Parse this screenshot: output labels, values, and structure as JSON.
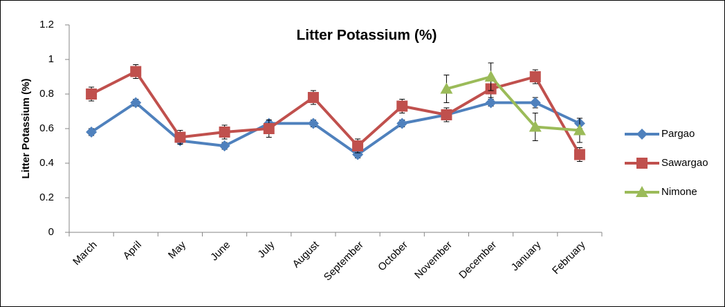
{
  "chart_data": {
    "type": "line",
    "title": "Litter Potassium (%)",
    "y_label": "Litter Potassium (%)",
    "categories": [
      "March",
      "April",
      "May",
      "June",
      "July",
      "August",
      "September",
      "October",
      "November",
      "December",
      "January",
      "February"
    ],
    "series": [
      {
        "name": "Pargao",
        "color": "#4f81bd",
        "marker": "diamond",
        "values": [
          0.58,
          0.75,
          0.53,
          0.5,
          0.63,
          0.63,
          0.45,
          0.63,
          0.68,
          0.75,
          0.75,
          0.63
        ],
        "errors": [
          0.02,
          0.02,
          0.02,
          0.02,
          0.02,
          0.02,
          0.02,
          0.02,
          0.02,
          0.02,
          0.03,
          0.03
        ]
      },
      {
        "name": "Sawargao",
        "color": "#c0504d",
        "marker": "square",
        "values": [
          0.8,
          0.93,
          0.55,
          0.58,
          0.6,
          0.78,
          0.5,
          0.73,
          0.68,
          0.83,
          0.9,
          0.45
        ],
        "errors": [
          0.04,
          0.04,
          0.04,
          0.04,
          0.05,
          0.04,
          0.04,
          0.04,
          0.04,
          0.05,
          0.04,
          0.04
        ]
      },
      {
        "name": "Nimone",
        "color": "#9bbb59",
        "marker": "triangle",
        "values": [
          null,
          null,
          null,
          null,
          null,
          null,
          null,
          null,
          0.83,
          0.9,
          0.61,
          0.59
        ],
        "errors": [
          null,
          null,
          null,
          null,
          null,
          null,
          null,
          null,
          0.08,
          0.08,
          0.08,
          0.07
        ]
      }
    ],
    "ylim": [
      0,
      1.2
    ],
    "yticks": [
      0,
      0.2,
      0.4,
      0.6,
      0.8,
      1,
      1.2
    ],
    "grid": false,
    "legend": "right"
  }
}
